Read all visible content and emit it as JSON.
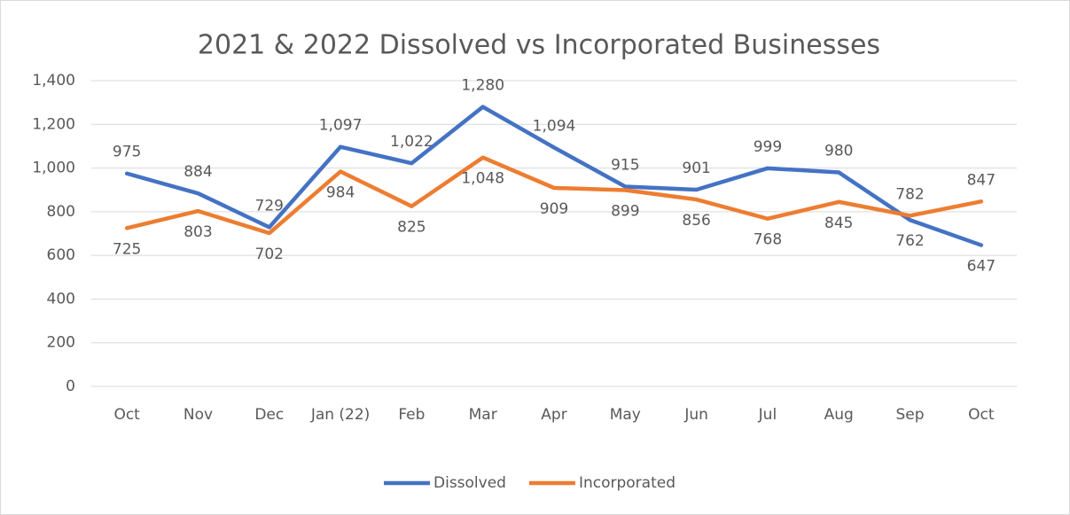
{
  "chart_data": {
    "type": "line",
    "title": "2021 & 2022 Dissolved vs Incorporated Businesses",
    "categories": [
      "Oct",
      "Nov",
      "Dec",
      "Jan (22)",
      "Feb",
      "Mar",
      "Apr",
      "May",
      "Jun",
      "Jul",
      "Aug",
      "Sep",
      "Oct"
    ],
    "series": [
      {
        "name": "Dissolved",
        "color": "#4472c4",
        "values": [
          975,
          884,
          729,
          1097,
          1022,
          1280,
          1094,
          915,
          901,
          999,
          980,
          762,
          647
        ],
        "value_labels": [
          "975",
          "884",
          "729",
          "1,097",
          "1,022",
          "1,280",
          "1,094",
          "915",
          "901",
          "999",
          "980",
          "762",
          "647"
        ]
      },
      {
        "name": "Incorporated",
        "color": "#ed7d31",
        "values": [
          725,
          803,
          702,
          984,
          825,
          1048,
          909,
          899,
          856,
          768,
          845,
          782,
          847
        ],
        "value_labels": [
          "725",
          "803",
          "702",
          "984",
          "825",
          "1,048",
          "909",
          "899",
          "856",
          "768",
          "845",
          "782",
          "847"
        ]
      }
    ],
    "ylim": [
      0,
      1400
    ],
    "yticks": [
      0,
      200,
      400,
      600,
      800,
      {
        "value": 1000,
        "label": "1,000"
      },
      {
        "value": 1200,
        "label": "1,200"
      },
      {
        "value": 1400,
        "label": "1,400"
      }
    ],
    "grid": true,
    "legend": "bottom"
  }
}
